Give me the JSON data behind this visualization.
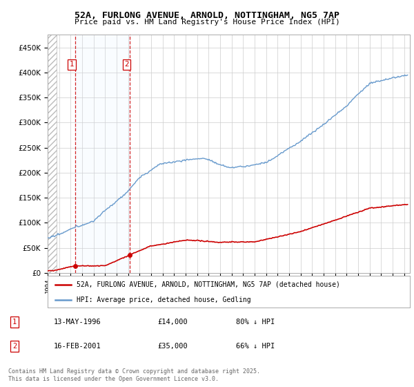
{
  "title_line1": "52A, FURLONG AVENUE, ARNOLD, NOTTINGHAM, NG5 7AP",
  "title_line2": "Price paid vs. HM Land Registry's House Price Index (HPI)",
  "background_color": "#ffffff",
  "plot_bg_color": "#ffffff",
  "grid_color": "#cccccc",
  "red_line_color": "#cc0000",
  "blue_line_color": "#6699cc",
  "blue_fill_color": "#ddeeff",
  "hatch_color": "#bbbbbb",
  "purchase1_date": 1996.37,
  "purchase1_price": 14000,
  "purchase2_date": 2001.12,
  "purchase2_price": 35000,
  "legend_entries": [
    "52A, FURLONG AVENUE, ARNOLD, NOTTINGHAM, NG5 7AP (detached house)",
    "HPI: Average price, detached house, Gedling"
  ],
  "table_rows": [
    [
      "1",
      "13-MAY-1996",
      "£14,000",
      "80% ↓ HPI"
    ],
    [
      "2",
      "16-FEB-2001",
      "£35,000",
      "66% ↓ HPI"
    ]
  ],
  "footnote": "Contains HM Land Registry data © Crown copyright and database right 2025.\nThis data is licensed under the Open Government Licence v3.0.",
  "xmin": 1994,
  "xmax": 2025.5,
  "ymin": 0,
  "ymax": 475000
}
